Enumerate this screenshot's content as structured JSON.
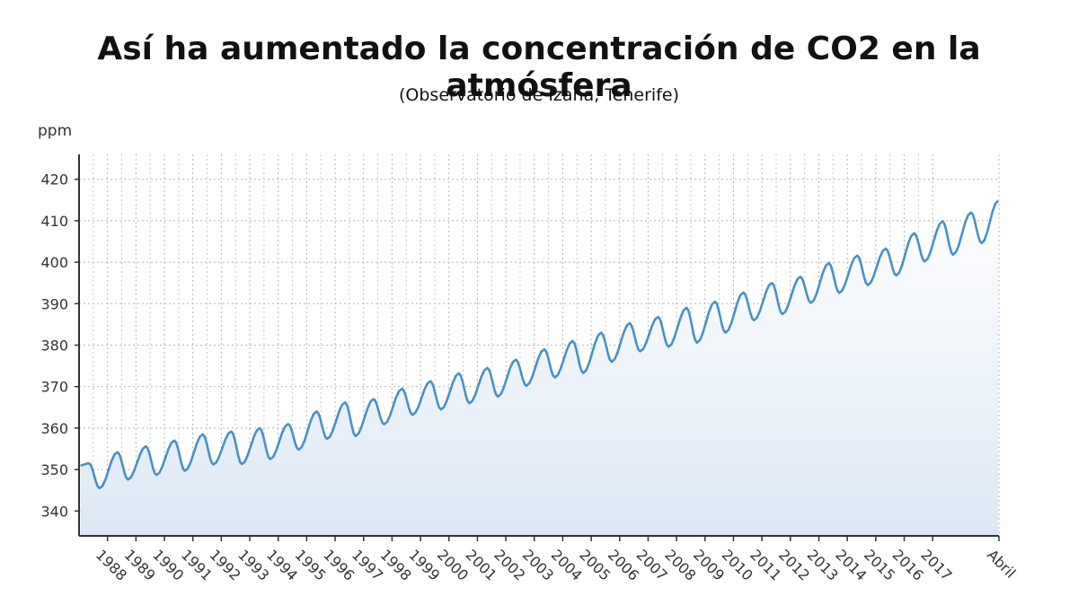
{
  "chart_data": {
    "type": "area",
    "title": "Así ha aumentado la concentración de CO2 en la atmósfera",
    "subtitle": "(Observatorio de Izaña, Tenerife)",
    "ylabel": "ppm",
    "xlabel": "",
    "ylim": [
      334,
      426
    ],
    "xlim": [
      1987.0,
      2019.33
    ],
    "y_ticks": [
      340,
      350,
      360,
      370,
      380,
      390,
      400,
      410,
      420
    ],
    "x_tick_labels": [
      "1988",
      "1989",
      "1990",
      "1991",
      "1992",
      "1993",
      "1994",
      "1995",
      "1996",
      "1997",
      "1998",
      "1999",
      "2000",
      "2001",
      "2002",
      "2003",
      "2004",
      "2005",
      "2006",
      "2007",
      "2008",
      "2009",
      "2010",
      "2011",
      "2012",
      "2013",
      "2014",
      "2015",
      "2016",
      "2017",
      "Abril"
    ],
    "grid": true,
    "color": "#4a90c4",
    "fill_color": "#e6eef8",
    "series": [
      {
        "annual_peak": [
          [
            1987,
            351.5
          ],
          [
            1988,
            354.2
          ],
          [
            1989,
            355.6
          ],
          [
            1990,
            357.0
          ],
          [
            1991,
            358.5
          ],
          [
            1992,
            359.2
          ],
          [
            1993,
            360.0
          ],
          [
            1994,
            361.0
          ],
          [
            1995,
            364.0
          ],
          [
            1996,
            366.2
          ],
          [
            1997,
            367.0
          ],
          [
            1998,
            369.5
          ],
          [
            1999,
            371.3
          ],
          [
            2000,
            373.2
          ],
          [
            2001,
            374.5
          ],
          [
            2002,
            376.5
          ],
          [
            2003,
            379.0
          ],
          [
            2004,
            381.0
          ],
          [
            2005,
            383.0
          ],
          [
            2006,
            385.3
          ],
          [
            2007,
            386.8
          ],
          [
            2008,
            389.0
          ],
          [
            2009,
            390.5
          ],
          [
            2010,
            392.7
          ],
          [
            2011,
            395.0
          ],
          [
            2012,
            396.5
          ],
          [
            2013,
            399.8
          ],
          [
            2014,
            401.6
          ],
          [
            2015,
            403.3
          ],
          [
            2016,
            407.0
          ],
          [
            2017,
            409.9
          ],
          [
            2018,
            412.0
          ],
          [
            2019,
            414.8
          ]
        ],
        "annual_trough": [
          [
            1987,
            345.5
          ],
          [
            1988,
            347.6
          ],
          [
            1989,
            348.7
          ],
          [
            1990,
            349.7
          ],
          [
            1991,
            351.2
          ],
          [
            1992,
            351.3
          ],
          [
            1993,
            352.5
          ],
          [
            1994,
            354.8
          ],
          [
            1995,
            357.4
          ],
          [
            1996,
            358.1
          ],
          [
            1997,
            360.9
          ],
          [
            1998,
            363.2
          ],
          [
            1999,
            364.5
          ],
          [
            2000,
            366.0
          ],
          [
            2001,
            367.6
          ],
          [
            2002,
            370.2
          ],
          [
            2003,
            372.2
          ],
          [
            2004,
            373.3
          ],
          [
            2005,
            376.0
          ],
          [
            2006,
            378.5
          ],
          [
            2007,
            379.6
          ],
          [
            2008,
            380.6
          ],
          [
            2009,
            383.0
          ],
          [
            2010,
            386.0
          ],
          [
            2011,
            387.5
          ],
          [
            2012,
            390.2
          ],
          [
            2013,
            392.6
          ],
          [
            2014,
            394.5
          ],
          [
            2015,
            396.8
          ],
          [
            2016,
            400.2
          ],
          [
            2017,
            401.8
          ],
          [
            2018,
            404.6
          ]
        ]
      }
    ]
  }
}
